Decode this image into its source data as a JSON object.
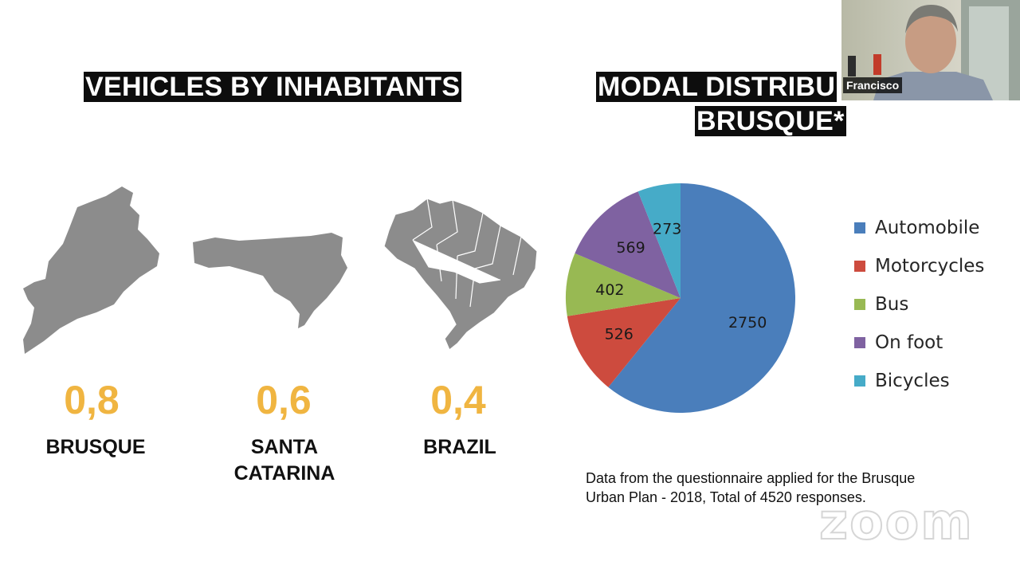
{
  "slide": {
    "left_title": "VEHICLES BY INHABITANTS",
    "right_title_line1": "MODAL DISTRIBU",
    "right_title_line2": "BRUSQUE*",
    "regions": [
      {
        "ratio": "0,8",
        "name": "BRUSQUE"
      },
      {
        "ratio": "0,6",
        "name_line1": "SANTA",
        "name_line2": "CATARINA"
      },
      {
        "ratio": "0,4",
        "name": "BRAZIL"
      }
    ],
    "note_line1": "Data from the questionnaire applied for the Brusque",
    "note_line2": "Urban Plan - 2018, Total of 4520 responses."
  },
  "webcam": {
    "participant_name": "Francisco"
  },
  "watermark": "zoom",
  "chart_data": {
    "type": "pie",
    "categories": [
      "Automobile",
      "Motorcycles",
      "Bus",
      "On foot",
      "Bicycles"
    ],
    "values": [
      2750,
      526,
      402,
      569,
      273
    ],
    "colors": [
      "#4a7ebb",
      "#cd4b3e",
      "#98b953",
      "#7f62a1",
      "#46abc8"
    ],
    "legend_position": "right"
  }
}
